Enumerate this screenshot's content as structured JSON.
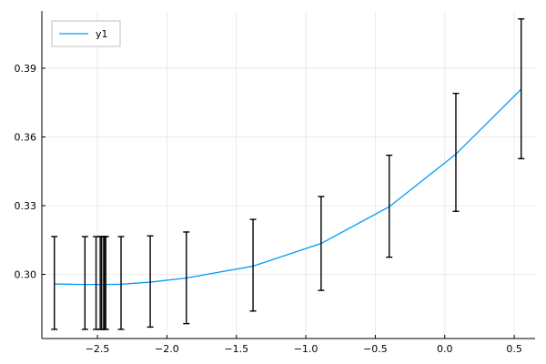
{
  "chart_data": {
    "type": "line",
    "title": "",
    "xlabel": "",
    "ylabel": "",
    "xlim": [
      -2.9,
      0.65
    ],
    "ylim": [
      0.272,
      0.415
    ],
    "xticks": [
      -2.5,
      -2.0,
      -1.5,
      -1.0,
      -0.5,
      0.0,
      0.5
    ],
    "xtick_labels": [
      "−2.5",
      "−2.0",
      "−1.5",
      "−1.0",
      "−0.5",
      "0.0",
      "0.5"
    ],
    "yticks": [
      0.3,
      0.33,
      0.36,
      0.39
    ],
    "ytick_labels": [
      "0.30",
      "0.33",
      "0.36",
      "0.39"
    ],
    "grid": true,
    "legend": {
      "position": "top-left",
      "entries": [
        "y1"
      ]
    },
    "series": [
      {
        "name": "y1",
        "color": "#009af9",
        "x": [
          -2.81,
          -2.59,
          -2.51,
          -2.48,
          -2.47,
          -2.455,
          -2.45,
          -2.44,
          -2.33,
          -2.12,
          -1.86,
          -1.38,
          -0.89,
          -0.4,
          0.08,
          0.55
        ],
        "y": [
          0.2958,
          0.2956,
          0.2956,
          0.2956,
          0.2956,
          0.2956,
          0.2956,
          0.2956,
          0.2957,
          0.2966,
          0.2984,
          0.3036,
          0.3135,
          0.3295,
          0.3525,
          0.3808
        ],
        "err_lower": [
          0.276,
          0.276,
          0.276,
          0.276,
          0.276,
          0.276,
          0.276,
          0.276,
          0.276,
          0.277,
          0.2785,
          0.284,
          0.293,
          0.3075,
          0.3275,
          0.3505
        ],
        "err_upper": [
          0.3165,
          0.3165,
          0.3165,
          0.3165,
          0.3165,
          0.3165,
          0.3165,
          0.3165,
          0.3165,
          0.3168,
          0.3185,
          0.324,
          0.334,
          0.352,
          0.379,
          0.4115
        ],
        "err_color": "#000000"
      }
    ]
  }
}
